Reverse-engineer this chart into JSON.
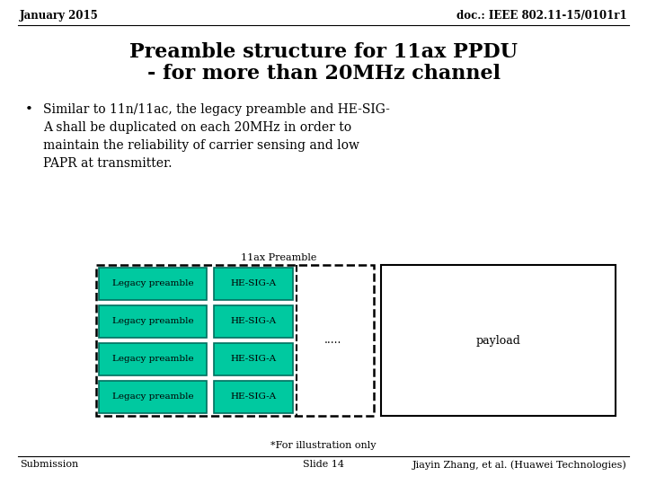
{
  "header_left": "January 2015",
  "header_right": "doc.: IEEE 802.11-15/0101r1",
  "title_line1": "Preamble structure for 11ax PPDU",
  "title_line2": "- for more than 20MHz channel",
  "bullet_lines": [
    "Similar to 11n/11ac, the legacy preamble and HE-SIG-",
    "A shall be duplicated on each 20MHz in order to",
    "maintain the reliability of carrier sensing and low",
    "PAPR at transmitter."
  ],
  "diagram_label": "11ax Preamble",
  "rows": [
    "Legacy preamble",
    "Legacy preamble",
    "Legacy preamble",
    "Legacy preamble"
  ],
  "hesiga_labels": [
    "HE-SIG-A",
    "HE-SIG-A",
    "HE-SIG-A",
    "HE-SIG-A"
  ],
  "payload_label": "payload",
  "dots": ".....",
  "footer_note": "*For illustration only",
  "footer_left": "Submission",
  "footer_center": "Slide 14",
  "footer_right": "Jiayin Zhang, et al. (Huawei Technologies)",
  "teal_color": "#00C9A0",
  "box_edge_color": "#007060",
  "bg_color": "#ffffff",
  "text_color": "#000000"
}
